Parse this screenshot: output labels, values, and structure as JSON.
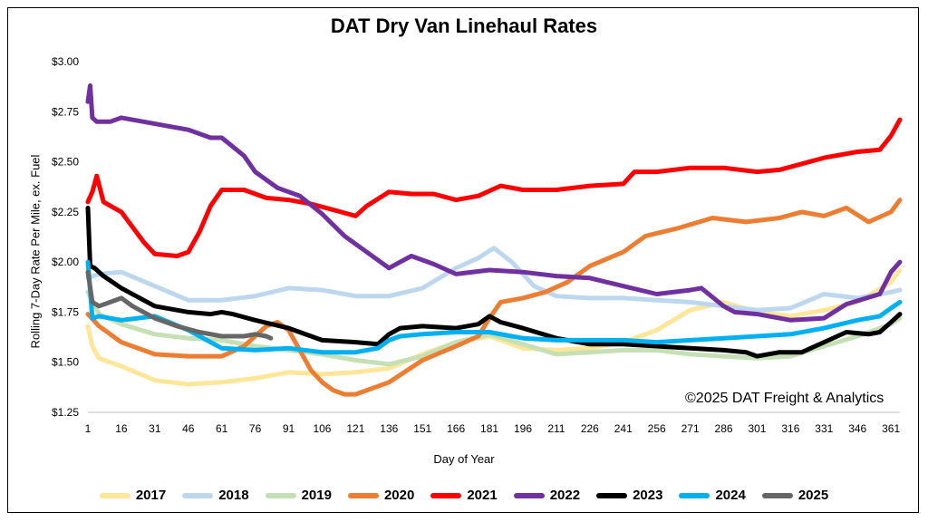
{
  "chart_data": {
    "type": "line",
    "title": "DAT Dry Van Linehaul Rates",
    "xlabel": "Day of Year",
    "ylabel": "Rolling 7-Day Rate Per Mile, ex. Fuel",
    "annotation": "©2025 DAT Freight & Analytics",
    "xlim": [
      1,
      365
    ],
    "ylim": [
      1.25,
      3.0
    ],
    "x_ticks": [
      1,
      16,
      31,
      46,
      61,
      76,
      91,
      106,
      121,
      136,
      151,
      166,
      181,
      196,
      211,
      226,
      241,
      256,
      271,
      286,
      301,
      316,
      331,
      346,
      361
    ],
    "y_ticks": [
      1.25,
      1.5,
      1.75,
      2.0,
      2.25,
      2.5,
      2.75,
      3.0
    ],
    "y_tick_labels": [
      "$1.25",
      "$1.50",
      "$1.75",
      "$2.00",
      "$2.25",
      "$2.50",
      "$2.75",
      "$3.00"
    ],
    "grid": false,
    "legend_position": "bottom",
    "series": [
      {
        "name": "2017",
        "color": "#FFE699",
        "x": [
          1,
          3,
          6,
          16,
          31,
          46,
          61,
          76,
          91,
          106,
          121,
          136,
          151,
          166,
          181,
          196,
          211,
          226,
          241,
          256,
          271,
          286,
          301,
          316,
          331,
          346,
          361,
          365
        ],
        "y": [
          1.68,
          1.58,
          1.52,
          1.48,
          1.41,
          1.39,
          1.4,
          1.42,
          1.45,
          1.44,
          1.45,
          1.47,
          1.54,
          1.6,
          1.63,
          1.57,
          1.56,
          1.57,
          1.6,
          1.66,
          1.76,
          1.8,
          1.75,
          1.73,
          1.76,
          1.8,
          1.9,
          1.96
        ]
      },
      {
        "name": "2018",
        "color": "#BDD7EE",
        "x": [
          1,
          6,
          16,
          31,
          46,
          61,
          76,
          91,
          106,
          121,
          136,
          151,
          166,
          176,
          183,
          191,
          201,
          211,
          226,
          241,
          256,
          271,
          286,
          301,
          316,
          331,
          346,
          361,
          365
        ],
        "y": [
          1.92,
          1.94,
          1.95,
          1.88,
          1.81,
          1.81,
          1.83,
          1.87,
          1.86,
          1.83,
          1.83,
          1.87,
          1.97,
          2.02,
          2.07,
          2.0,
          1.88,
          1.83,
          1.82,
          1.82,
          1.81,
          1.8,
          1.78,
          1.76,
          1.77,
          1.84,
          1.82,
          1.85,
          1.86
        ]
      },
      {
        "name": "2019",
        "color": "#C5E0B4",
        "x": [
          1,
          6,
          16,
          31,
          46,
          61,
          76,
          91,
          106,
          121,
          136,
          151,
          166,
          181,
          196,
          211,
          226,
          241,
          256,
          271,
          286,
          301,
          316,
          331,
          346,
          361,
          365
        ],
        "y": [
          1.85,
          1.74,
          1.69,
          1.64,
          1.62,
          1.61,
          1.58,
          1.56,
          1.54,
          1.51,
          1.49,
          1.53,
          1.6,
          1.64,
          1.59,
          1.54,
          1.55,
          1.56,
          1.56,
          1.54,
          1.53,
          1.52,
          1.53,
          1.58,
          1.63,
          1.69,
          1.72
        ]
      },
      {
        "name": "2020",
        "color": "#ED7D31",
        "x": [
          1,
          6,
          16,
          31,
          46,
          61,
          71,
          81,
          86,
          91,
          96,
          101,
          106,
          111,
          116,
          121,
          136,
          151,
          166,
          176,
          181,
          186,
          196,
          206,
          216,
          226,
          241,
          251,
          266,
          281,
          296,
          311,
          321,
          331,
          341,
          351,
          361,
          365
        ],
        "y": [
          1.74,
          1.68,
          1.6,
          1.54,
          1.53,
          1.53,
          1.58,
          1.68,
          1.7,
          1.66,
          1.56,
          1.46,
          1.4,
          1.36,
          1.34,
          1.34,
          1.4,
          1.51,
          1.58,
          1.63,
          1.72,
          1.8,
          1.82,
          1.85,
          1.9,
          1.98,
          2.05,
          2.13,
          2.17,
          2.22,
          2.2,
          2.22,
          2.25,
          2.23,
          2.27,
          2.2,
          2.25,
          2.31
        ]
      },
      {
        "name": "2021",
        "color": "#FF0000",
        "x": [
          1,
          3,
          5,
          8,
          16,
          26,
          31,
          41,
          46,
          51,
          56,
          61,
          71,
          81,
          91,
          101,
          111,
          121,
          126,
          136,
          146,
          156,
          166,
          176,
          186,
          196,
          211,
          226,
          241,
          246,
          256,
          271,
          286,
          301,
          311,
          321,
          331,
          346,
          356,
          361,
          365
        ],
        "y": [
          2.3,
          2.35,
          2.43,
          2.3,
          2.25,
          2.1,
          2.04,
          2.03,
          2.05,
          2.15,
          2.28,
          2.36,
          2.36,
          2.32,
          2.31,
          2.29,
          2.26,
          2.23,
          2.28,
          2.35,
          2.34,
          2.34,
          2.31,
          2.33,
          2.38,
          2.36,
          2.36,
          2.38,
          2.39,
          2.45,
          2.45,
          2.47,
          2.47,
          2.45,
          2.46,
          2.49,
          2.52,
          2.55,
          2.56,
          2.63,
          2.71
        ]
      },
      {
        "name": "2022",
        "color": "#7030A0",
        "x": [
          1,
          2,
          3,
          5,
          11,
          16,
          26,
          36,
          46,
          56,
          61,
          71,
          76,
          86,
          96,
          106,
          116,
          126,
          136,
          141,
          146,
          156,
          166,
          181,
          196,
          211,
          226,
          241,
          256,
          271,
          276,
          286,
          291,
          301,
          316,
          331,
          341,
          356,
          361,
          365
        ],
        "y": [
          2.8,
          2.88,
          2.72,
          2.7,
          2.7,
          2.72,
          2.7,
          2.68,
          2.66,
          2.62,
          2.62,
          2.53,
          2.45,
          2.37,
          2.33,
          2.24,
          2.13,
          2.05,
          1.97,
          2.0,
          2.03,
          1.99,
          1.94,
          1.96,
          1.95,
          1.93,
          1.92,
          1.88,
          1.84,
          1.86,
          1.87,
          1.78,
          1.75,
          1.74,
          1.71,
          1.72,
          1.79,
          1.84,
          1.95,
          2.0
        ]
      },
      {
        "name": "2023",
        "color": "#000000",
        "x": [
          1,
          2,
          4,
          8,
          16,
          31,
          46,
          56,
          61,
          66,
          76,
          91,
          106,
          121,
          131,
          136,
          141,
          151,
          166,
          176,
          181,
          186,
          196,
          211,
          226,
          241,
          256,
          271,
          286,
          296,
          301,
          311,
          321,
          331,
          341,
          351,
          356,
          361,
          365
        ],
        "y": [
          2.27,
          1.98,
          1.97,
          1.93,
          1.87,
          1.78,
          1.75,
          1.74,
          1.75,
          1.74,
          1.71,
          1.67,
          1.61,
          1.6,
          1.59,
          1.64,
          1.67,
          1.68,
          1.67,
          1.69,
          1.73,
          1.7,
          1.67,
          1.62,
          1.59,
          1.59,
          1.58,
          1.57,
          1.56,
          1.55,
          1.53,
          1.55,
          1.55,
          1.6,
          1.65,
          1.64,
          1.65,
          1.7,
          1.74
        ]
      },
      {
        "name": "2024",
        "color": "#00B0F0",
        "x": [
          1,
          3,
          6,
          16,
          31,
          46,
          56,
          61,
          76,
          91,
          106,
          121,
          131,
          136,
          141,
          151,
          166,
          181,
          196,
          211,
          226,
          241,
          256,
          271,
          286,
          301,
          316,
          331,
          346,
          356,
          361,
          365
        ],
        "y": [
          2.0,
          1.72,
          1.73,
          1.71,
          1.73,
          1.66,
          1.6,
          1.57,
          1.56,
          1.57,
          1.55,
          1.55,
          1.57,
          1.61,
          1.63,
          1.64,
          1.65,
          1.65,
          1.62,
          1.61,
          1.61,
          1.61,
          1.6,
          1.61,
          1.62,
          1.63,
          1.64,
          1.67,
          1.71,
          1.73,
          1.77,
          1.8
        ]
      },
      {
        "name": "2025",
        "color": "#666666",
        "x": [
          1,
          3,
          6,
          11,
          16,
          21,
          31,
          41,
          51,
          61,
          71,
          76,
          81,
          83
        ],
        "y": [
          1.95,
          1.8,
          1.78,
          1.8,
          1.82,
          1.78,
          1.72,
          1.68,
          1.65,
          1.63,
          1.63,
          1.64,
          1.63,
          1.62
        ]
      }
    ]
  }
}
